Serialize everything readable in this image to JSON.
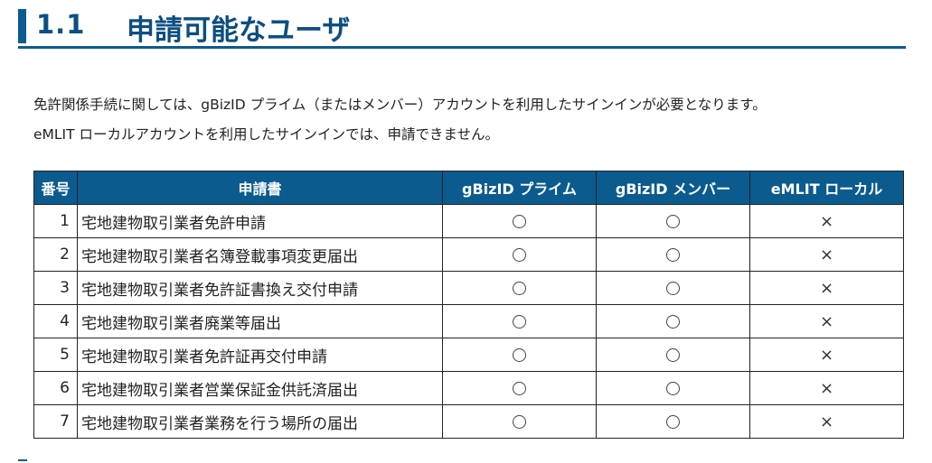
{
  "heading": {
    "number": "1.1",
    "title": "申請可能なユーザ"
  },
  "intro": {
    "line1": "免許関係手続に関しては、gBizID プライム（またはメンバー）アカウントを利用したサインインが必要となります。",
    "line2": "eMLIT ローカルアカウントを利用したサインインでは、申請できません。"
  },
  "table": {
    "headers": [
      "番号",
      "申請書",
      "gBizID プライム",
      "gBizID メンバー",
      "eMLIT ローカル"
    ],
    "rows": [
      {
        "num": "1",
        "name": "宅地建物取引業者免許申請",
        "prime": "○",
        "member": "○",
        "local": "×"
      },
      {
        "num": "2",
        "name": "宅地建物取引業者名簿登載事項変更届出",
        "prime": "○",
        "member": "○",
        "local": "×"
      },
      {
        "num": "3",
        "name": "宅地建物取引業者免許証書換え交付申請",
        "prime": "○",
        "member": "○",
        "local": "×"
      },
      {
        "num": "4",
        "name": "宅地建物取引業者廃業等届出",
        "prime": "○",
        "member": "○",
        "local": "×"
      },
      {
        "num": "5",
        "name": "宅地建物取引業者免許証再交付申請",
        "prime": "○",
        "member": "○",
        "local": "×"
      },
      {
        "num": "6",
        "name": "宅地建物取引業者営業保証金供託済届出",
        "prime": "○",
        "member": "○",
        "local": "×"
      },
      {
        "num": "7",
        "name": "宅地建物取引業者業務を行う場所の届出",
        "prime": "○",
        "member": "○",
        "local": "×"
      }
    ]
  },
  "colors": {
    "accent": "#0b5b8f",
    "heading_text": "#0b4f82"
  }
}
